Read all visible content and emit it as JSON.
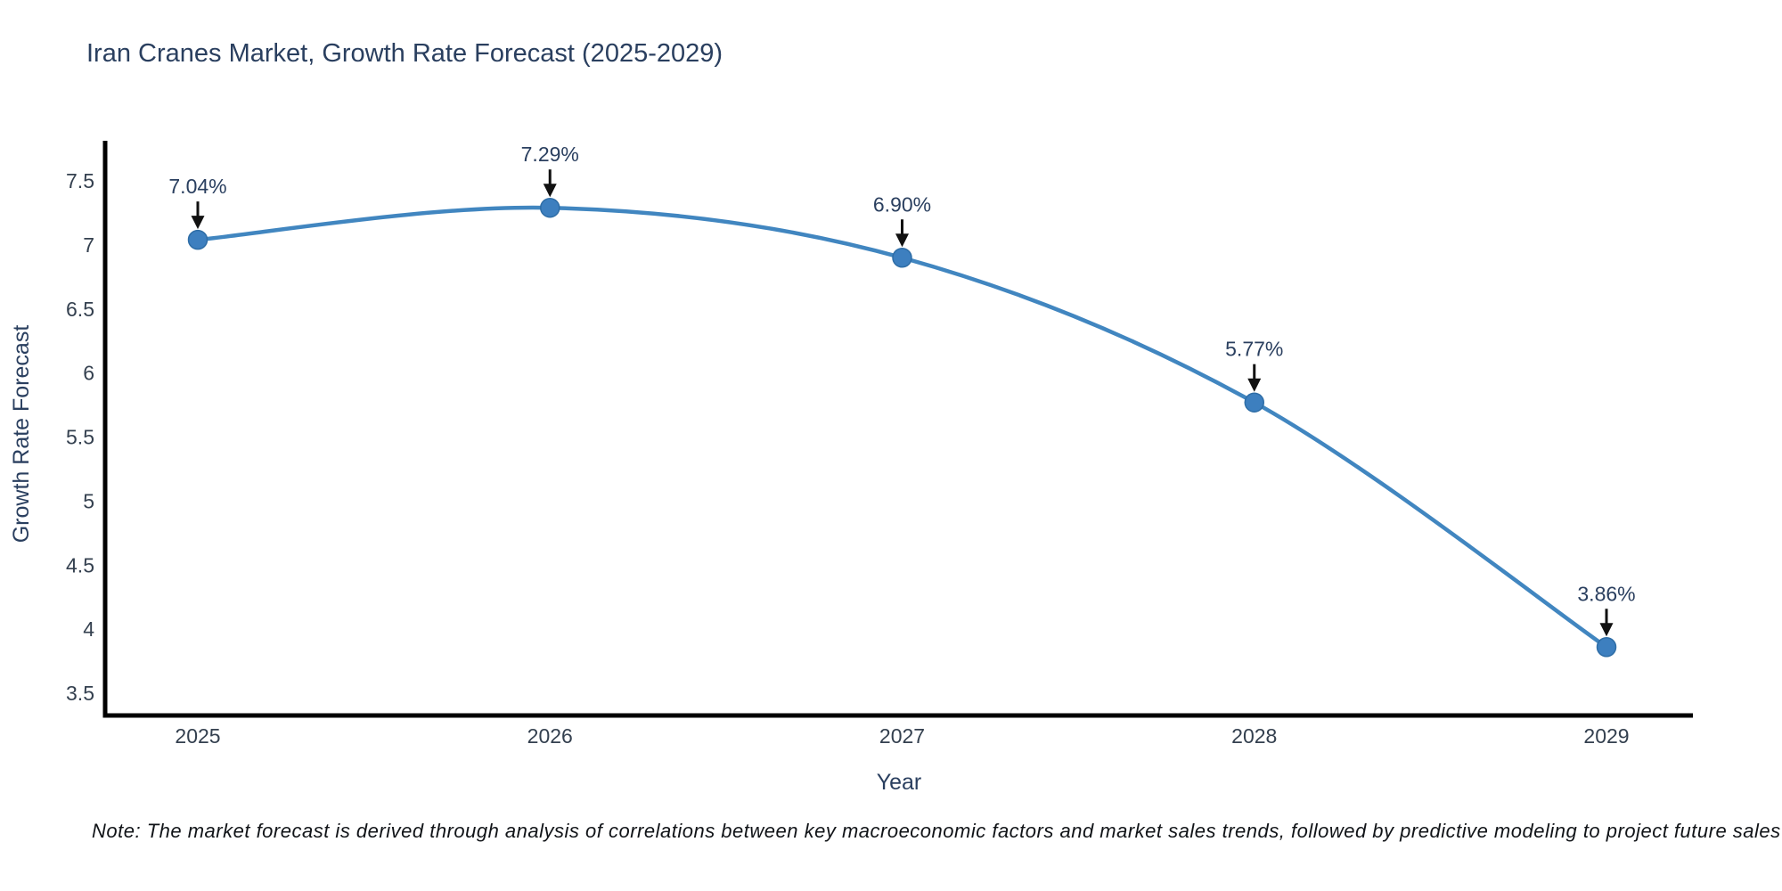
{
  "title": "Iran Cranes Market, Growth Rate Forecast (2025-2029)",
  "note": "Note: The market forecast is derived through analysis of correlations between key macroeconomic factors and market sales trends, followed by predictive modeling to project future sales",
  "chart_data": {
    "type": "line",
    "line_shape": "spline",
    "title": "Iran Cranes Market, Growth Rate Forecast (2025-2029)",
    "categories": [
      "2025",
      "2026",
      "2027",
      "2028",
      "2029"
    ],
    "values": [
      7.04,
      7.29,
      6.9,
      5.77,
      3.86
    ],
    "point_labels": [
      "7.04%",
      "7.29%",
      "6.90%",
      "5.77%",
      "3.86%"
    ],
    "xlabel": "Year",
    "ylabel": "Growth Rate Forecast",
    "ylim": [
      3.5,
      7.5
    ],
    "ytick_values": [
      7.5,
      7,
      6.5,
      6,
      5.5,
      5,
      4.5,
      4,
      3.5
    ],
    "ytick_labels": [
      "7.5",
      "7",
      "6.5",
      "6",
      "5.5",
      "5",
      "4.5",
      "4",
      "3.5"
    ],
    "grid": false,
    "legend": "none",
    "annotations_have_arrows": true,
    "colors": {
      "line": "#4186c0",
      "marker": "#3d7fbf",
      "marker_edge": "#2e6da6",
      "axis": "#000000",
      "text": "#2a3f5f",
      "arrow": "#111111"
    }
  }
}
